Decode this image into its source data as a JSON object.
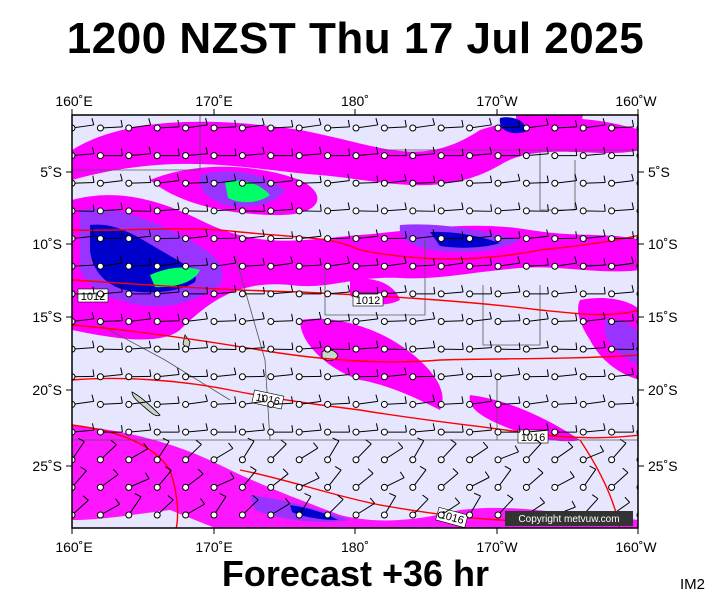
{
  "title": "1200 NZST Thu 17 Jul 2025",
  "footer": "Forecast +36 hr",
  "code": "IM2",
  "copyright": "Copyright metvuw.com",
  "map": {
    "lon_top": [
      "160˚E",
      "170˚E",
      "180˚",
      "170˚W",
      "160˚W"
    ],
    "lon_bottom": [
      "160˚E",
      "170˚E",
      "180˚",
      "170˚W",
      "160˚W"
    ],
    "lat_left": [
      "5˚S",
      "10˚S",
      "15˚S",
      "20˚S",
      "25˚S"
    ],
    "lat_right": [
      "5˚S",
      "10˚S",
      "15˚S",
      "20˚S",
      "25˚S"
    ],
    "isobar_labels": [
      "1012",
      "1012",
      "1016",
      "1016",
      "1016"
    ],
    "colors": {
      "ocean": "#e6e6ff",
      "isobar": "#ff0000",
      "rain_light": "#ff00ff",
      "rain_mid": "#9933ff",
      "rain_heavy": "#0000cc",
      "rain_max": "#00ff66"
    }
  }
}
